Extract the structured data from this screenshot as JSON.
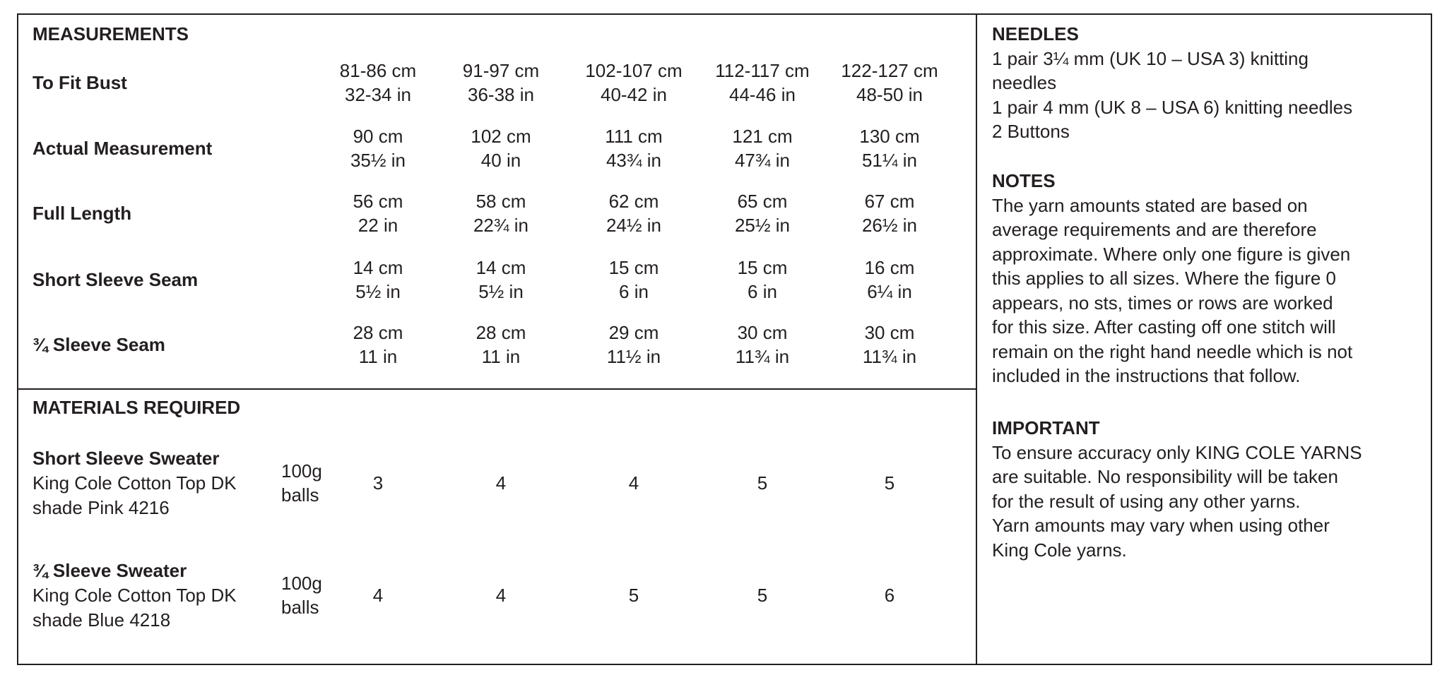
{
  "measurements": {
    "title": "MEASUREMENTS",
    "rows": [
      {
        "label": "To Fit Bust",
        "values": [
          [
            "81-86 cm",
            "32-34 in"
          ],
          [
            "91-97 cm",
            "36-38 in"
          ],
          [
            "102-107 cm",
            "40-42 in"
          ],
          [
            "112-117 cm",
            "44-46 in"
          ],
          [
            "122-127 cm",
            "48-50 in"
          ]
        ]
      },
      {
        "label": "Actual Measurement",
        "values": [
          [
            "90 cm",
            "35½ in"
          ],
          [
            "102 cm",
            "40 in"
          ],
          [
            "111 cm",
            "43¾ in"
          ],
          [
            "121 cm",
            "47¾ in"
          ],
          [
            "130 cm",
            "51¼ in"
          ]
        ]
      },
      {
        "label": "Full Length",
        "values": [
          [
            "56 cm",
            "22 in"
          ],
          [
            "58 cm",
            "22¾ in"
          ],
          [
            "62 cm",
            "24½ in"
          ],
          [
            "65 cm",
            "25½ in"
          ],
          [
            "67 cm",
            "26½ in"
          ]
        ]
      },
      {
        "label": "Short Sleeve Seam",
        "values": [
          [
            "14 cm",
            "5½ in"
          ],
          [
            "14 cm",
            "5½ in"
          ],
          [
            "15 cm",
            "6 in"
          ],
          [
            "15 cm",
            "6 in"
          ],
          [
            "16 cm",
            "6¼ in"
          ]
        ]
      },
      {
        "label": "¾ Sleeve Seam",
        "values": [
          [
            "28 cm",
            "11 in"
          ],
          [
            "28 cm",
            "11 in"
          ],
          [
            "29 cm",
            "11½ in"
          ],
          [
            "30 cm",
            "11¾ in"
          ],
          [
            "30 cm",
            "11¾ in"
          ]
        ]
      }
    ]
  },
  "materials": {
    "title": "MATERIALS REQUIRED",
    "items": [
      {
        "name": "Short Sleeve Sweater",
        "line2": "King Cole Cotton Top DK",
        "line3": "shade Pink 4216",
        "unit1": "100g",
        "unit2": "balls",
        "values": [
          "3",
          "4",
          "4",
          "5",
          "5"
        ]
      },
      {
        "name": "¾ Sleeve Sweater",
        "line2": "King Cole Cotton Top DK",
        "line3": "shade Blue 4218",
        "unit1": "100g",
        "unit2": "balls",
        "values": [
          "4",
          "4",
          "5",
          "5",
          "6"
        ]
      }
    ]
  },
  "needles": {
    "title": "NEEDLES",
    "lines": [
      "1 pair 3¼ mm (UK 10 – USA 3) knitting",
      "needles",
      "1 pair 4 mm (UK 8 – USA 6) knitting needles",
      "2 Buttons"
    ]
  },
  "notes": {
    "title": "NOTES",
    "lines": [
      "The yarn amounts stated are based on",
      "average requirements and are therefore",
      "approximate. Where only one figure is given",
      "this applies to all sizes. Where the figure 0",
      "appears, no sts, times or rows are worked",
      "for this size. After casting off one stitch will",
      "remain on the right hand needle which is not",
      "included in the instructions that follow."
    ]
  },
  "important": {
    "title": "IMPORTANT",
    "lines": [
      "To ensure accuracy only KING COLE YARNS",
      "are suitable. No responsibility will be taken",
      "for the result of using any other yarns.",
      "Yarn amounts may vary when using other",
      "King Cole yarns."
    ]
  }
}
